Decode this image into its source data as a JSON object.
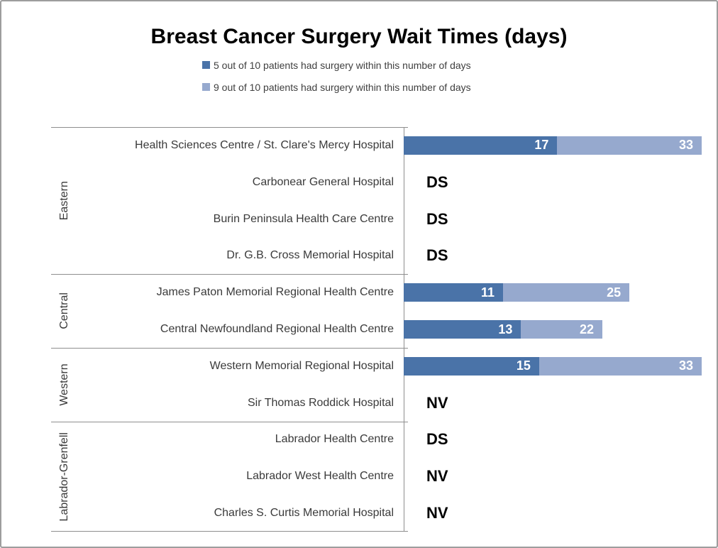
{
  "title": "Breast Cancer Surgery Wait Times (days)",
  "legend": {
    "items": [
      {
        "label": "5 out of 10 patients had surgery within this number of days",
        "color": "#4a73a8"
      },
      {
        "label": "9 out of 10 patients had surgery within this number of days",
        "color": "#96a9ce"
      }
    ]
  },
  "colors": {
    "series_p50": "#4a73a8",
    "series_p90": "#96a9ce",
    "axis_line": "#8e8e8e",
    "frame_border": "#9d9d9d",
    "bar_value_text": "#ffffff",
    "label_text": "#3a3a3a"
  },
  "chart_data": {
    "type": "bar",
    "orientation": "horizontal",
    "title": "Breast Cancer Surgery Wait Times (days)",
    "xlabel": "",
    "ylabel": "",
    "xlim": [
      0,
      33
    ],
    "grid": false,
    "legend_position": "top",
    "series_names": [
      "5 out of 10 patients had surgery within this number of days",
      "9 out of 10 patients had surgery within this number of days"
    ],
    "groups": [
      {
        "label": "Eastern",
        "rows": [
          {
            "hospital": "Health Sciences Centre / St. Clare's Mercy Hospital",
            "p50": 17,
            "p90": 33,
            "note": null
          },
          {
            "hospital": "Carbonear General Hospital",
            "p50": null,
            "p90": null,
            "note": "DS"
          },
          {
            "hospital": "Burin Peninsula Health Care Centre",
            "p50": null,
            "p90": null,
            "note": "DS"
          },
          {
            "hospital": "Dr. G.B. Cross Memorial Hospital",
            "p50": null,
            "p90": null,
            "note": "DS"
          }
        ]
      },
      {
        "label": "Central",
        "rows": [
          {
            "hospital": "James Paton Memorial Regional Health Centre",
            "p50": 11,
            "p90": 25,
            "note": null
          },
          {
            "hospital": "Central Newfoundland Regional Health Centre",
            "p50": 13,
            "p90": 22,
            "note": null
          }
        ]
      },
      {
        "label": "Western",
        "rows": [
          {
            "hospital": "Western Memorial Regional Hospital",
            "p50": 15,
            "p90": 33,
            "note": null
          },
          {
            "hospital": "Sir Thomas Roddick Hospital",
            "p50": null,
            "p90": null,
            "note": "NV"
          }
        ]
      },
      {
        "label": "Labrador-Grenfell",
        "rows": [
          {
            "hospital": "Labrador Health Centre",
            "p50": null,
            "p90": null,
            "note": "DS"
          },
          {
            "hospital": "Labrador West Health Centre",
            "p50": null,
            "p90": null,
            "note": "NV"
          },
          {
            "hospital": "Charles S. Curtis Memorial Hospital",
            "p50": null,
            "p90": null,
            "note": "NV"
          }
        ]
      }
    ]
  }
}
